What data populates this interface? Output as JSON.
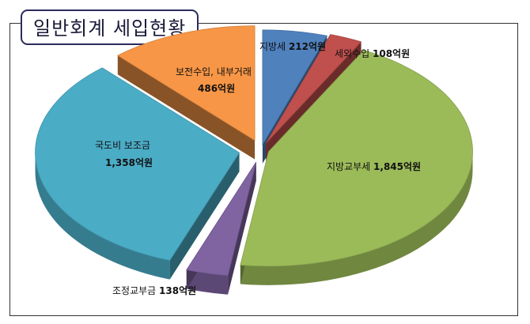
{
  "title": "일반회계 세입현황",
  "chart_data": {
    "type": "pie",
    "unit": "억원",
    "slices": [
      {
        "name": "지방세",
        "value": 212,
        "value_text": "212억원",
        "color": "#4f81bd"
      },
      {
        "name": "세외수입",
        "value": 108,
        "value_text": "108억원",
        "color": "#c0504d"
      },
      {
        "name": "지방교부세",
        "value": 1845,
        "value_text": "1,845억원",
        "color": "#9bbb59"
      },
      {
        "name": "조정교부금",
        "value": 138,
        "value_text": "138억원",
        "color": "#8064a2"
      },
      {
        "name": "국도비 보조금",
        "value": 1358,
        "value_text": "1,358억원",
        "color": "#4bacc6"
      },
      {
        "name": "보전수입, 내부거래",
        "value": 486,
        "value_text": "486억원",
        "color": "#f79646"
      }
    ]
  }
}
